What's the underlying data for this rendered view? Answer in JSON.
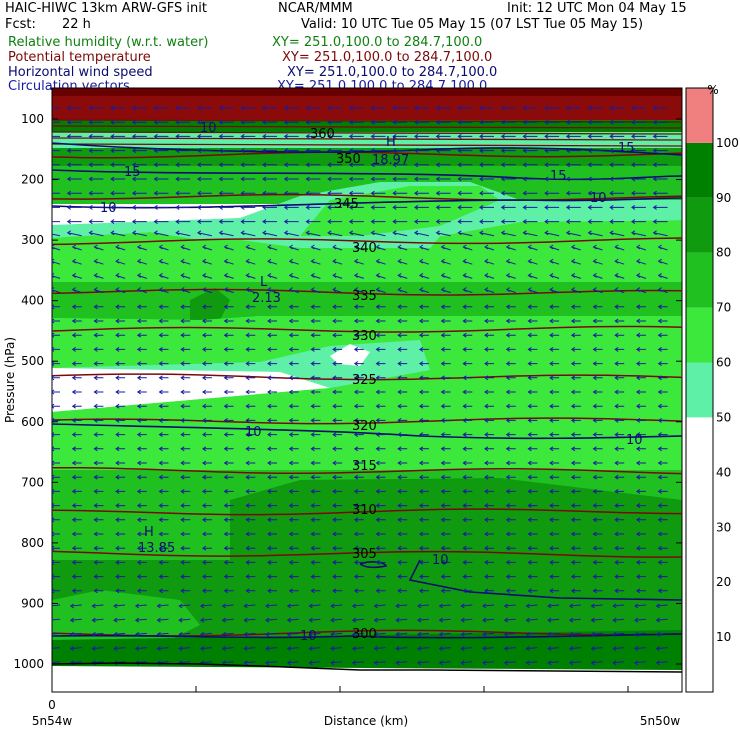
{
  "header": {
    "model": "HAIC-HIWC 13km ARW-GFS init",
    "center": "NCAR/MMM",
    "init": "Init: 12 UTC Mon 04 May 15",
    "fcst_label": "Fcst:",
    "fcst_value": "22 h",
    "valid": "Valid: 10 UTC Tue 05 May 15 (07 LST Tue 05 May 15)"
  },
  "fields": [
    {
      "name": "Relative humidity (w.r.t. water)",
      "xy": "XY= 251.0,100.0 to 284.7,100.0",
      "color": "#108010"
    },
    {
      "name": "Potential temperature",
      "xy": "XY= 251.0,100.0 to 284.7,100.0",
      "color": "#7a0a0a"
    },
    {
      "name": "Horizontal wind speed",
      "xy": "XY= 251.0,100.0 to 284.7,100.0",
      "color": "#0c0c70"
    },
    {
      "name": "Circulation vectors",
      "xy": "XY= 251.0,100.0 to 284.7,100.0",
      "color": "#1a1aa0"
    }
  ],
  "chart_data": {
    "type": "cross-section",
    "ylabel": "Pressure (hPa)",
    "xlabel": "Distance (km)",
    "y_ticks": [
      100,
      200,
      300,
      400,
      500,
      600,
      700,
      800,
      900,
      1000
    ],
    "x_origin_label": "0",
    "left_endpoint": "5n54w",
    "right_endpoint": "5n50w",
    "colorbar": {
      "unit": "%",
      "levels": [
        10,
        20,
        30,
        40,
        50,
        60,
        70,
        80,
        90,
        100
      ],
      "colors": [
        "#ffffff",
        "#ffffff",
        "#ffffff",
        "#ffffff",
        "#ffffff",
        "#5ff0a8",
        "#3ce83c",
        "#20c020",
        "#0f9a0f",
        "#008000",
        "#f08080"
      ]
    },
    "theta_labels": [
      "345",
      "340",
      "335",
      "330",
      "325",
      "320",
      "315",
      "310",
      "305",
      "300",
      "350",
      "360"
    ],
    "wind_labels": [
      "10",
      "10",
      "10",
      "10",
      "10",
      "15",
      "15",
      "15",
      "10",
      "10"
    ],
    "extrema": [
      {
        "type": "L",
        "value": "2.13"
      },
      {
        "type": "H",
        "value": "13.85"
      },
      {
        "type": "H",
        "value": "18.97"
      }
    ],
    "theta_levels": [
      {
        "value": 350,
        "p": 160
      },
      {
        "value": 345,
        "p": 228
      },
      {
        "value": 340,
        "p": 303
      },
      {
        "value": 335,
        "p": 385
      },
      {
        "value": 330,
        "p": 449
      },
      {
        "value": 325,
        "p": 525
      },
      {
        "value": 320,
        "p": 600
      },
      {
        "value": 315,
        "p": 680
      },
      {
        "value": 310,
        "p": 750
      },
      {
        "value": 305,
        "p": 817
      },
      {
        "value": 300,
        "p": 950
      }
    ]
  }
}
